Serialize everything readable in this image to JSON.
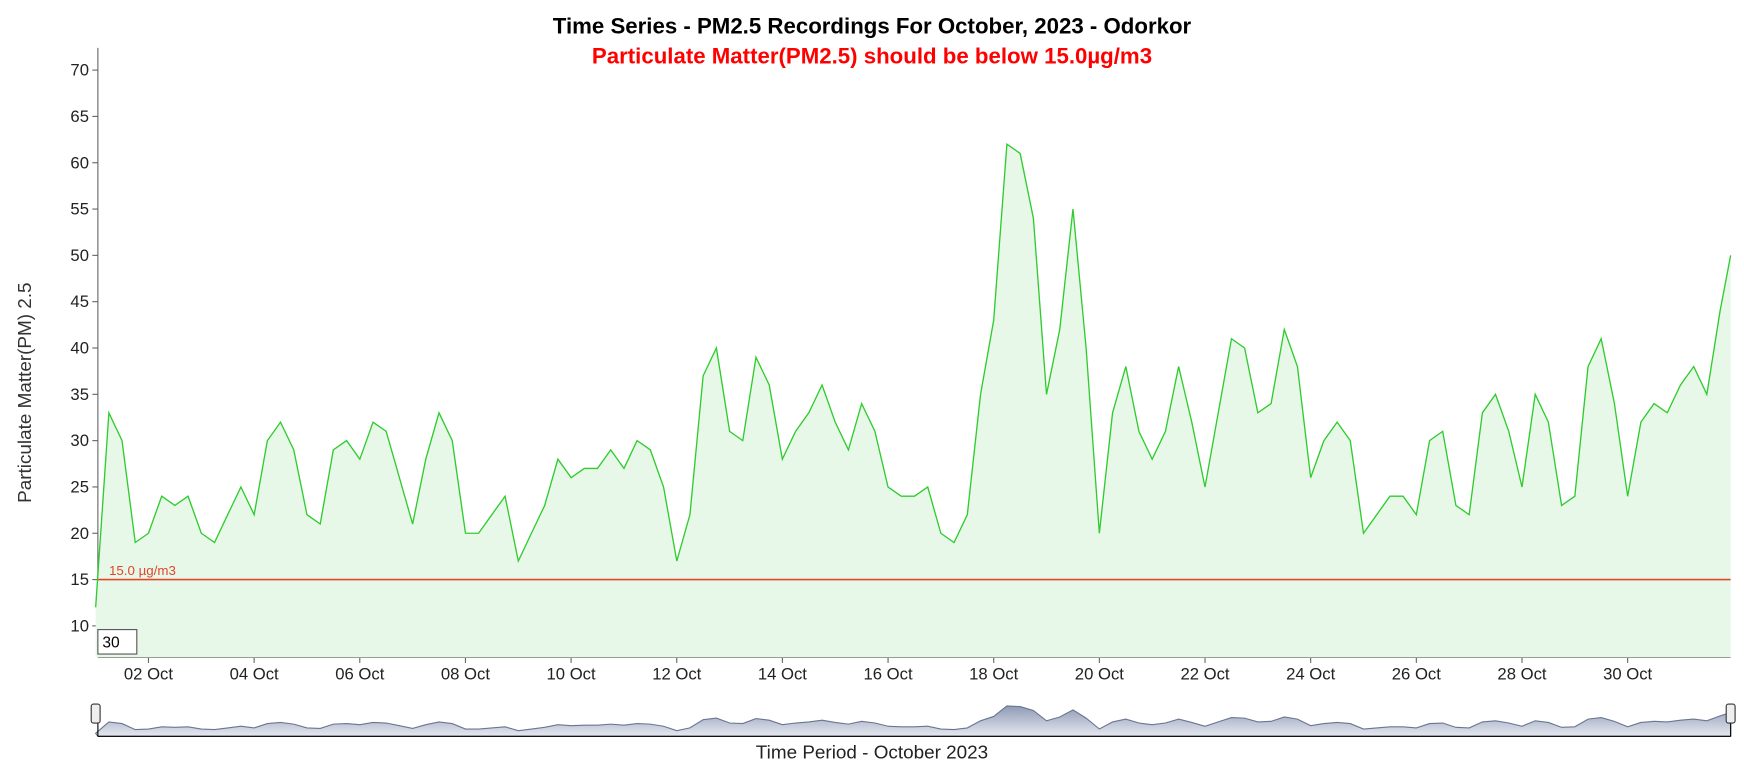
{
  "chart_data": {
    "type": "line",
    "title": "Time Series - PM2.5 Recordings For October, 2023 - Odorkor",
    "subtitle": "Particulate Matter(PM2.5) should be below 15.0µg/m3",
    "y_label": "Particulate Matter(PM) 2.5",
    "x_label": "Time Period - October 2023",
    "roll_period": 30,
    "threshold": {
      "value": 15,
      "label": "15.0 µg/m3",
      "color": "#e0472b"
    },
    "color": "#2ecc2e",
    "fill": "#e8f8e8",
    "xlim": [
      1,
      31.95
    ],
    "xticks": [
      {
        "value": 2,
        "label": "02 Oct"
      },
      {
        "value": 4,
        "label": "04 Oct"
      },
      {
        "value": 6,
        "label": "06 Oct"
      },
      {
        "value": 8,
        "label": "08 Oct"
      },
      {
        "value": 10,
        "label": "10 Oct"
      },
      {
        "value": 12,
        "label": "12 Oct"
      },
      {
        "value": 14,
        "label": "14 Oct"
      },
      {
        "value": 16,
        "label": "16 Oct"
      },
      {
        "value": 18,
        "label": "18 Oct"
      },
      {
        "value": 20,
        "label": "20 Oct"
      },
      {
        "value": 22,
        "label": "22 Oct"
      },
      {
        "value": 24,
        "label": "24 Oct"
      },
      {
        "value": 26,
        "label": "26 Oct"
      },
      {
        "value": 28,
        "label": "28 Oct"
      },
      {
        "value": 30,
        "label": "30 Oct"
      }
    ],
    "ylim": [
      6.6,
      72.4
    ],
    "yticks": [
      10,
      15,
      20,
      25,
      30,
      35,
      40,
      45,
      50,
      55,
      60,
      65,
      70
    ],
    "x": [
      1,
      1.25,
      1.5,
      1.75,
      2,
      2.25,
      2.5,
      2.75,
      3,
      3.25,
      3.5,
      3.75,
      4,
      4.25,
      4.5,
      4.75,
      5,
      5.25,
      5.5,
      5.75,
      6,
      6.25,
      6.5,
      6.75,
      7,
      7.25,
      7.5,
      7.75,
      8,
      8.25,
      8.5,
      8.75,
      9,
      9.25,
      9.5,
      9.75,
      10,
      10.25,
      10.5,
      10.75,
      11,
      11.25,
      11.5,
      11.75,
      12,
      12.25,
      12.5,
      12.75,
      13,
      13.25,
      13.5,
      13.75,
      14,
      14.25,
      14.5,
      14.75,
      15,
      15.25,
      15.5,
      15.75,
      16,
      16.25,
      16.5,
      16.75,
      17,
      17.25,
      17.5,
      17.75,
      18,
      18.25,
      18.5,
      18.75,
      19,
      19.25,
      19.5,
      19.75,
      20,
      20.25,
      20.5,
      20.75,
      21,
      21.25,
      21.5,
      21.75,
      22,
      22.25,
      22.5,
      22.75,
      23,
      23.25,
      23.5,
      23.75,
      24,
      24.25,
      24.5,
      24.75,
      25,
      25.25,
      25.5,
      25.75,
      26,
      26.25,
      26.5,
      26.75,
      27,
      27.25,
      27.5,
      27.75,
      28,
      28.25,
      28.5,
      28.75,
      29,
      29.25,
      29.5,
      29.75,
      30,
      30.25,
      30.5,
      30.75,
      31,
      31.25,
      31.5,
      31.75,
      31.95
    ],
    "values": [
      12,
      33,
      30,
      19,
      20,
      24,
      23,
      24,
      20,
      19,
      22,
      25,
      22,
      30,
      32,
      29,
      22,
      21,
      29,
      30,
      28,
      32,
      31,
      26,
      21,
      28,
      33,
      30,
      20,
      20,
      22,
      24,
      17,
      20,
      23,
      28,
      26,
      27,
      27,
      29,
      27,
      30,
      29,
      25,
      17,
      22,
      37,
      40,
      31,
      30,
      39,
      36,
      28,
      31,
      33,
      36,
      32,
      29,
      34,
      31,
      25,
      24,
      24,
      25,
      20,
      19,
      22,
      35,
      43,
      62,
      61,
      54,
      35,
      42,
      55,
      40,
      20,
      33,
      38,
      31,
      28,
      31,
      38,
      32,
      25,
      33,
      41,
      40,
      33,
      34,
      42,
      38,
      26,
      30,
      32,
      30,
      20,
      22,
      24,
      24,
      22,
      30,
      31,
      23,
      22,
      33,
      35,
      31,
      25,
      35,
      32,
      23,
      24,
      38,
      41,
      34,
      24,
      32,
      34,
      33,
      36,
      38,
      35,
      44,
      50
    ]
  }
}
